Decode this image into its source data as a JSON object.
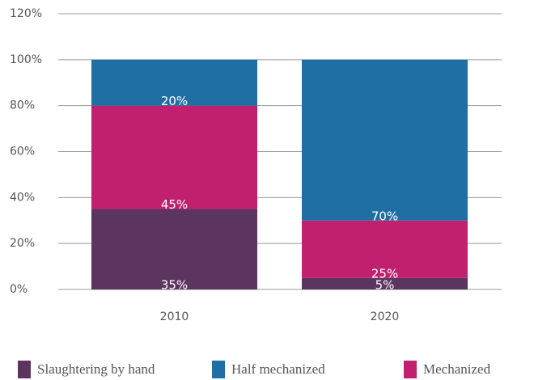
{
  "chart_data": {
    "type": "stacked_bar",
    "categories": [
      "2010",
      "2020"
    ],
    "series": [
      {
        "name": "Slaughtering by hand",
        "color": "#5b3560",
        "values": [
          35,
          5
        ],
        "value_labels": [
          "35%",
          "5%"
        ]
      },
      {
        "name": "Mechanized",
        "color": "#c0206f",
        "values": [
          45,
          25
        ],
        "value_labels": [
          "45%",
          "25%"
        ]
      },
      {
        "name": "Half mechanized",
        "color": "#1f6fa5",
        "values": [
          20,
          70
        ],
        "value_labels": [
          "20%",
          "70%"
        ]
      }
    ],
    "ylim": [
      0,
      120
    ],
    "yticks": [
      {
        "value": 0,
        "label": "0%"
      },
      {
        "value": 20,
        "label": "20%"
      },
      {
        "value": 40,
        "label": "40%"
      },
      {
        "value": 60,
        "label": "60%"
      },
      {
        "value": 80,
        "label": "80%"
      },
      {
        "value": 100,
        "label": "100%"
      },
      {
        "value": 120,
        "label": "120%"
      }
    ],
    "grid": true
  }
}
